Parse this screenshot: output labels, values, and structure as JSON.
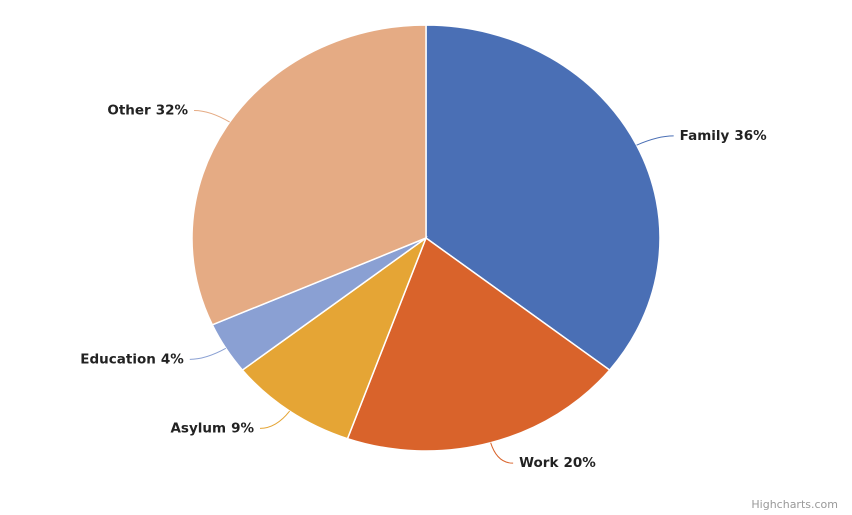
{
  "chart_data": {
    "type": "pie",
    "categories": [
      "Family",
      "Work",
      "Asylum",
      "Education",
      "Other"
    ],
    "values": [
      36,
      20,
      9,
      4,
      32
    ],
    "value_labels": [
      "36%",
      "20%",
      "9%",
      "4%",
      "32%"
    ],
    "colors": [
      "#4a6fb5",
      "#d9632b",
      "#e5a535",
      "#8aa0d3",
      "#e5ab84"
    ],
    "credits": "Highcharts.com"
  }
}
